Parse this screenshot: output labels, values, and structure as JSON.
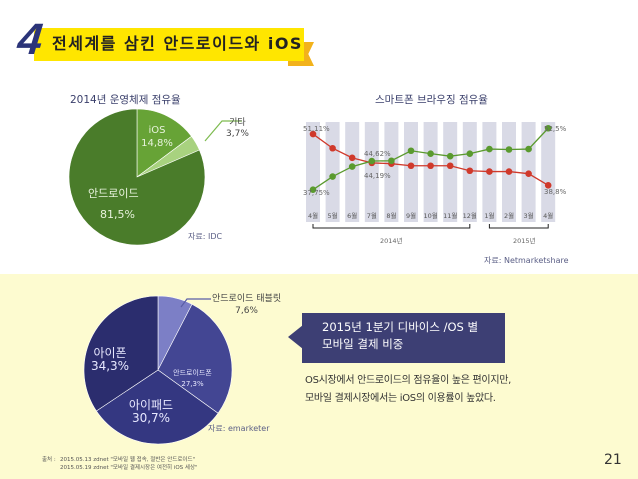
{
  "header": {
    "section_number": "4",
    "title": "전세계를 삼킨 안드로이드와 iOS",
    "banner_color": "#ffe600",
    "number_color": "#2b3479"
  },
  "os_share": {
    "title": "2014년 운영체제 점유율",
    "source": "자료: IDC",
    "slices": [
      {
        "label": "안드로이드",
        "value_text": "81,5%",
        "value": 81.5,
        "color": "#4a7c2a"
      },
      {
        "label": "iOS",
        "value_text": "14,8%",
        "value": 14.8,
        "color": "#67a336"
      },
      {
        "label": "기타",
        "value_text": "3,7%",
        "value": 3.7,
        "color": "#a8d27f"
      }
    ]
  },
  "browsing": {
    "title": "스마트폰 브라우징 점유율",
    "source": "자료: Netmarketshare",
    "year_labels": [
      "2014년",
      "2015년"
    ],
    "annotations": {
      "red_start": "51,11%",
      "green_start": "37,75%",
      "green_cross": "44,62%",
      "red_cross": "44,19%",
      "green_end": "52,5%",
      "red_end": "38,8%"
    }
  },
  "device_payment": {
    "source": "자료: emarketer",
    "slices": [
      {
        "label": "안드로이드 태블릿",
        "value_text": "7,6%",
        "value": 7.6,
        "color": "#7c7fc6"
      },
      {
        "label": "안드로이드폰",
        "value_text": "27,3%",
        "value": 27.3,
        "color": "#434693"
      },
      {
        "label": "아이패드",
        "value_text": "30,7%",
        "value": 30.7,
        "color": "#343781"
      },
      {
        "label": "아이폰",
        "value_text": "34,3%",
        "value": 34.3,
        "color": "#2b2d6e"
      }
    ]
  },
  "callout": {
    "line1": "2015년 1분기 디바이스 /OS 별",
    "line2": "모바일 결제 비중"
  },
  "body": {
    "line1": "OS시장에서 안드로이드의 점유율이 높은 편이지만,",
    "line2": "모바일 결제시장에서는 iOS의 이용률이 높았다."
  },
  "footnote": {
    "label": "출처 :",
    "line1": "2015.05.13 zdnet \"모바일 웹 접속, 절반은 안드로이드\"",
    "line2": "2015.05.19 zdnet \"모바일 결제시장은 여전히 iOS 세상\""
  },
  "page_number": "21",
  "chart_data": [
    {
      "type": "pie",
      "title": "2014년 운영체제 점유율",
      "categories": [
        "안드로이드",
        "iOS",
        "기타"
      ],
      "values": [
        81.5,
        14.8,
        3.7
      ]
    },
    {
      "type": "line",
      "title": "스마트폰 브라우징 점유율",
      "categories": [
        "4월",
        "5월",
        "6월",
        "7월",
        "8월",
        "9월",
        "10월",
        "11월",
        "12월",
        "1월",
        "2월",
        "3월",
        "4월"
      ],
      "series": [
        {
          "name": "red",
          "color": "#d0392b",
          "values": [
            51.11,
            47.7,
            45.4,
            44.19,
            44.0,
            43.5,
            43.5,
            43.5,
            42.3,
            42.1,
            42.1,
            41.6,
            38.8
          ]
        },
        {
          "name": "green",
          "color": "#5a9a2e",
          "values": [
            37.75,
            40.9,
            43.3,
            44.62,
            44.7,
            47.1,
            46.4,
            45.8,
            46.4,
            47.5,
            47.4,
            47.5,
            52.5
          ]
        }
      ],
      "ylim": [
        36,
        54
      ],
      "grid": false
    },
    {
      "type": "pie",
      "title": "2015년 1분기 디바이스 /OS 별 모바일 결제 비중",
      "categories": [
        "안드로이드 태블릿",
        "안드로이드폰",
        "아이패드",
        "아이폰"
      ],
      "values": [
        7.6,
        27.3,
        30.7,
        34.3
      ]
    }
  ]
}
